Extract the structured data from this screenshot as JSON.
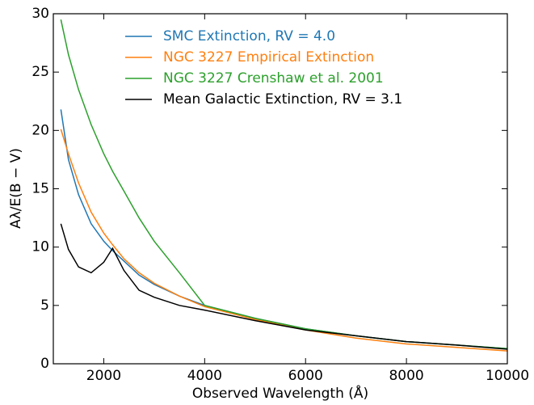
{
  "chart_data": {
    "type": "line",
    "xlabel": "Observed Wavelength (Å)",
    "ylabel": "Aλ/E(B − V)",
    "x": [
      1150,
      1300,
      1500,
      1750,
      2000,
      2175,
      2400,
      2700,
      3000,
      3500,
      4000,
      5000,
      6000,
      7000,
      8000,
      9000,
      10000
    ],
    "series": [
      {
        "name": "SMC Extinction, RV = 4.0",
        "color": "#1f77b4",
        "values": [
          21.8,
          17.5,
          14.5,
          12.0,
          10.5,
          9.7,
          8.8,
          7.6,
          6.8,
          5.8,
          5.0,
          3.9,
          3.0,
          2.4,
          1.9,
          1.6,
          1.3
        ]
      },
      {
        "name": "NGC 3227 Empirical Extinction",
        "color": "#ff7f0e",
        "values": [
          20.1,
          18.0,
          15.5,
          13.0,
          11.2,
          10.2,
          9.0,
          7.8,
          6.9,
          5.8,
          4.9,
          3.8,
          2.9,
          2.2,
          1.7,
          1.4,
          1.1
        ]
      },
      {
        "name": "NGC 3227 Crenshaw et al. 2001",
        "color": "#2ca02c",
        "values": [
          29.5,
          26.5,
          23.5,
          20.5,
          18.0,
          16.5,
          14.8,
          12.5,
          10.5,
          7.8,
          5.0,
          3.9,
          3.0,
          2.4,
          1.9,
          1.6,
          1.3
        ]
      },
      {
        "name": "Mean Galactic Extinction, RV = 3.1",
        "color": "#000000",
        "values": [
          12.0,
          9.8,
          8.3,
          7.8,
          8.7,
          9.9,
          8.0,
          6.3,
          5.7,
          5.0,
          4.6,
          3.7,
          2.9,
          2.4,
          1.9,
          1.6,
          1.25
        ]
      }
    ],
    "xlim": [
      1000,
      10000
    ],
    "xticks": [
      2000,
      4000,
      6000,
      8000,
      10000
    ],
    "ylim": [
      0,
      30
    ],
    "yticks": [
      0,
      5,
      10,
      15,
      20,
      25,
      30
    ],
    "legend": "upper center"
  }
}
